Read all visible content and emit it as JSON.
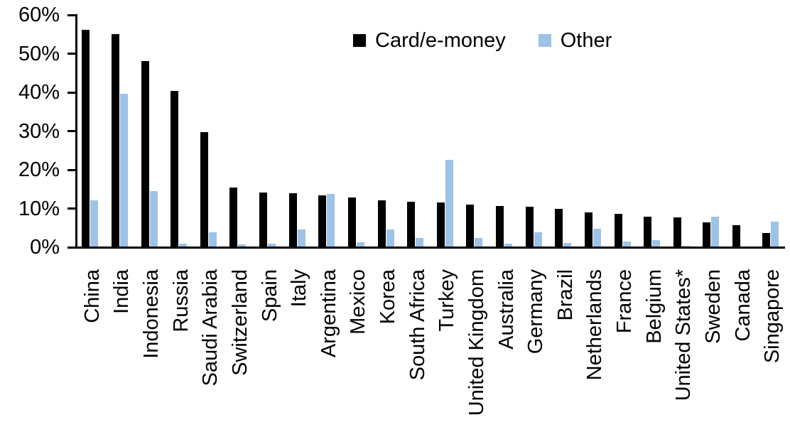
{
  "chart_data": {
    "type": "bar",
    "title": "",
    "categories": [
      "China",
      "India",
      "Indonesia",
      "Russia",
      "Saudi Arabia",
      "Switzerland",
      "Spain",
      "Italy",
      "Argentina",
      "Mexico",
      "Korea",
      "South Africa",
      "Turkey",
      "United Kingdom",
      "Australia",
      "Germany",
      "Brazil",
      "Netherlands",
      "France",
      "Belgium",
      "United States*",
      "Sweden",
      "Canada",
      "Singapore"
    ],
    "series": [
      {
        "name": "Card/e-money",
        "color": "#000000",
        "values": [
          56.2,
          55.0,
          48.1,
          40.4,
          29.7,
          15.5,
          14.1,
          14.0,
          13.4,
          12.9,
          12.2,
          11.7,
          11.6,
          11.0,
          10.7,
          10.5,
          9.9,
          9.0,
          8.6,
          7.9,
          7.7,
          6.4,
          5.7,
          3.7
        ]
      },
      {
        "name": "Other",
        "color": "#9DC3E6",
        "values": [
          12.2,
          39.7,
          14.5,
          1.0,
          3.8,
          0.8,
          1.0,
          4.5,
          13.8,
          1.3,
          4.5,
          2.3,
          22.6,
          2.3,
          1.0,
          3.9,
          1.1,
          4.8,
          1.5,
          1.9,
          0.3,
          7.9,
          0,
          6.6
        ]
      }
    ],
    "xlabel": "",
    "ylabel": "",
    "ylim": [
      0,
      60
    ],
    "yticks": [
      0,
      10,
      20,
      30,
      40,
      50,
      60
    ],
    "ytick_labels": [
      "0%",
      "10%",
      "20%",
      "30%",
      "40%",
      "50%",
      "60%"
    ],
    "grid": false,
    "legend_position": "top-center"
  },
  "colors": {
    "axis": "#000000",
    "background": "#FFFFFF"
  }
}
